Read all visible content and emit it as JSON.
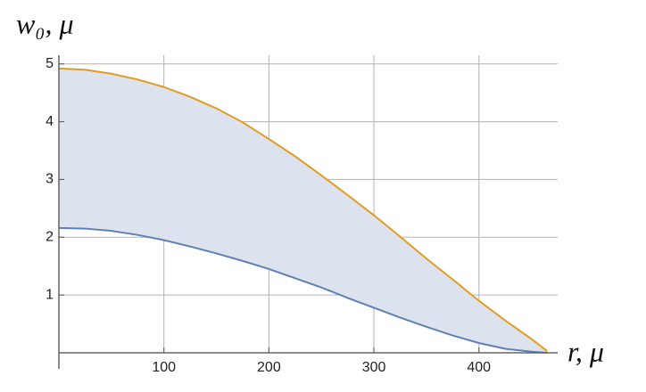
{
  "chart_data": {
    "type": "line",
    "xlabel": "r, μ",
    "ylabel": "w₀, μ",
    "x": [
      0,
      25,
      50,
      75,
      100,
      125,
      150,
      175,
      200,
      225,
      250,
      275,
      300,
      325,
      350,
      375,
      400,
      425,
      450,
      465
    ],
    "series": [
      {
        "color": "#e19c24",
        "values": [
          4.92,
          4.9,
          4.83,
          4.73,
          4.6,
          4.43,
          4.23,
          3.99,
          3.7,
          3.4,
          3.07,
          2.73,
          2.38,
          2.01,
          1.63,
          1.27,
          0.9,
          0.56,
          0.24,
          0.03
        ]
      },
      {
        "color": "#5e81b5",
        "values": [
          2.16,
          2.15,
          2.11,
          2.04,
          1.95,
          1.84,
          1.72,
          1.59,
          1.45,
          1.29,
          1.13,
          0.95,
          0.78,
          0.61,
          0.45,
          0.3,
          0.17,
          0.07,
          0.02,
          0
        ]
      }
    ],
    "fill_between": true,
    "fill_color": "#dde3ee",
    "xlim": [
      0,
      475
    ],
    "ylim": [
      0,
      5.15
    ],
    "xticks": [
      100,
      200,
      300,
      400
    ],
    "yticks": [
      1,
      2,
      3,
      4,
      5
    ],
    "grid": true
  }
}
